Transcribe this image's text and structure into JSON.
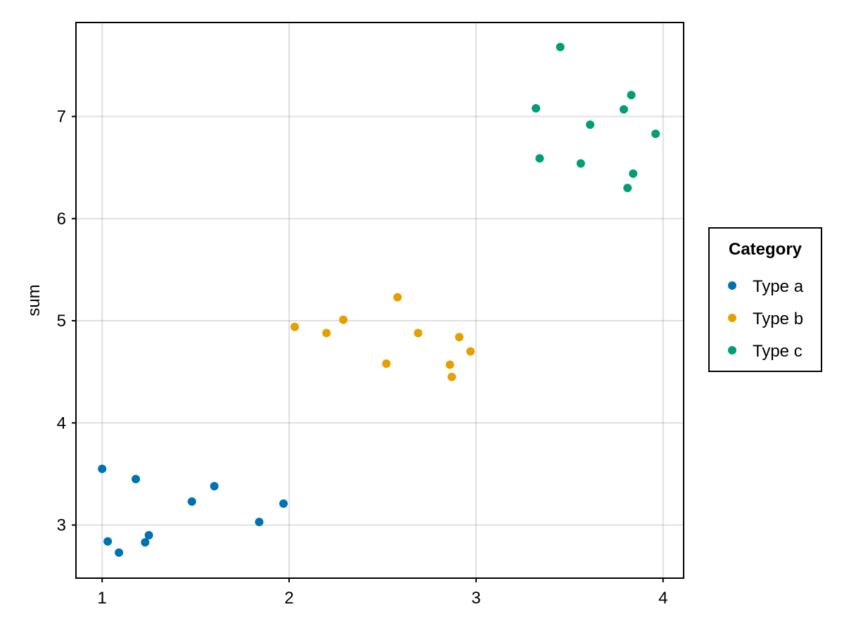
{
  "chart_data": {
    "type": "scatter",
    "title": "",
    "xlabel": "",
    "ylabel": "sum",
    "xlim": [
      0.86,
      4.11
    ],
    "ylim": [
      2.48,
      7.92
    ],
    "xticks": [
      1,
      2,
      3,
      4
    ],
    "yticks": [
      3,
      4,
      5,
      6,
      7
    ],
    "grid": true,
    "legend": {
      "title": "Category",
      "placement": "right"
    },
    "series": [
      {
        "name": "Type a",
        "color": "#0072b2",
        "points": [
          [
            1.0,
            3.55
          ],
          [
            1.03,
            2.84
          ],
          [
            1.09,
            2.73
          ],
          [
            1.18,
            3.45
          ],
          [
            1.23,
            2.83
          ],
          [
            1.25,
            2.9
          ],
          [
            1.48,
            3.23
          ],
          [
            1.6,
            3.38
          ],
          [
            1.84,
            3.03
          ],
          [
            1.97,
            3.21
          ]
        ]
      },
      {
        "name": "Type b",
        "color": "#e69f00",
        "points": [
          [
            2.03,
            4.94
          ],
          [
            2.2,
            4.88
          ],
          [
            2.29,
            5.01
          ],
          [
            2.52,
            4.58
          ],
          [
            2.58,
            5.23
          ],
          [
            2.69,
            4.88
          ],
          [
            2.86,
            4.57
          ],
          [
            2.87,
            4.45
          ],
          [
            2.91,
            4.84
          ],
          [
            2.97,
            4.7
          ]
        ]
      },
      {
        "name": "Type c",
        "color": "#009e73",
        "points": [
          [
            3.32,
            7.08
          ],
          [
            3.34,
            6.59
          ],
          [
            3.45,
            7.68
          ],
          [
            3.56,
            6.54
          ],
          [
            3.61,
            6.92
          ],
          [
            3.79,
            7.07
          ],
          [
            3.81,
            6.3
          ],
          [
            3.83,
            7.21
          ],
          [
            3.84,
            6.44
          ],
          [
            3.96,
            6.83
          ]
        ]
      }
    ]
  }
}
